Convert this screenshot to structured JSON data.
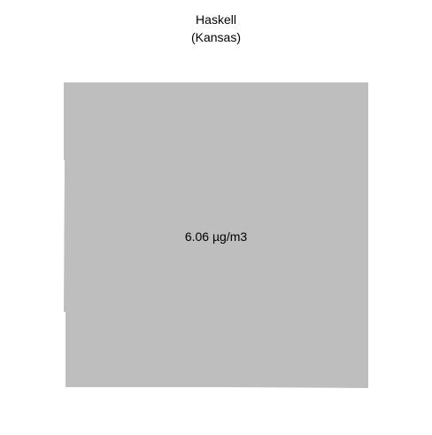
{
  "title": {
    "county": "Haskell",
    "state": "(Kansas)"
  },
  "map": {
    "region_fill": "#bebebe",
    "value_label": "6.06 µg/m3"
  }
}
